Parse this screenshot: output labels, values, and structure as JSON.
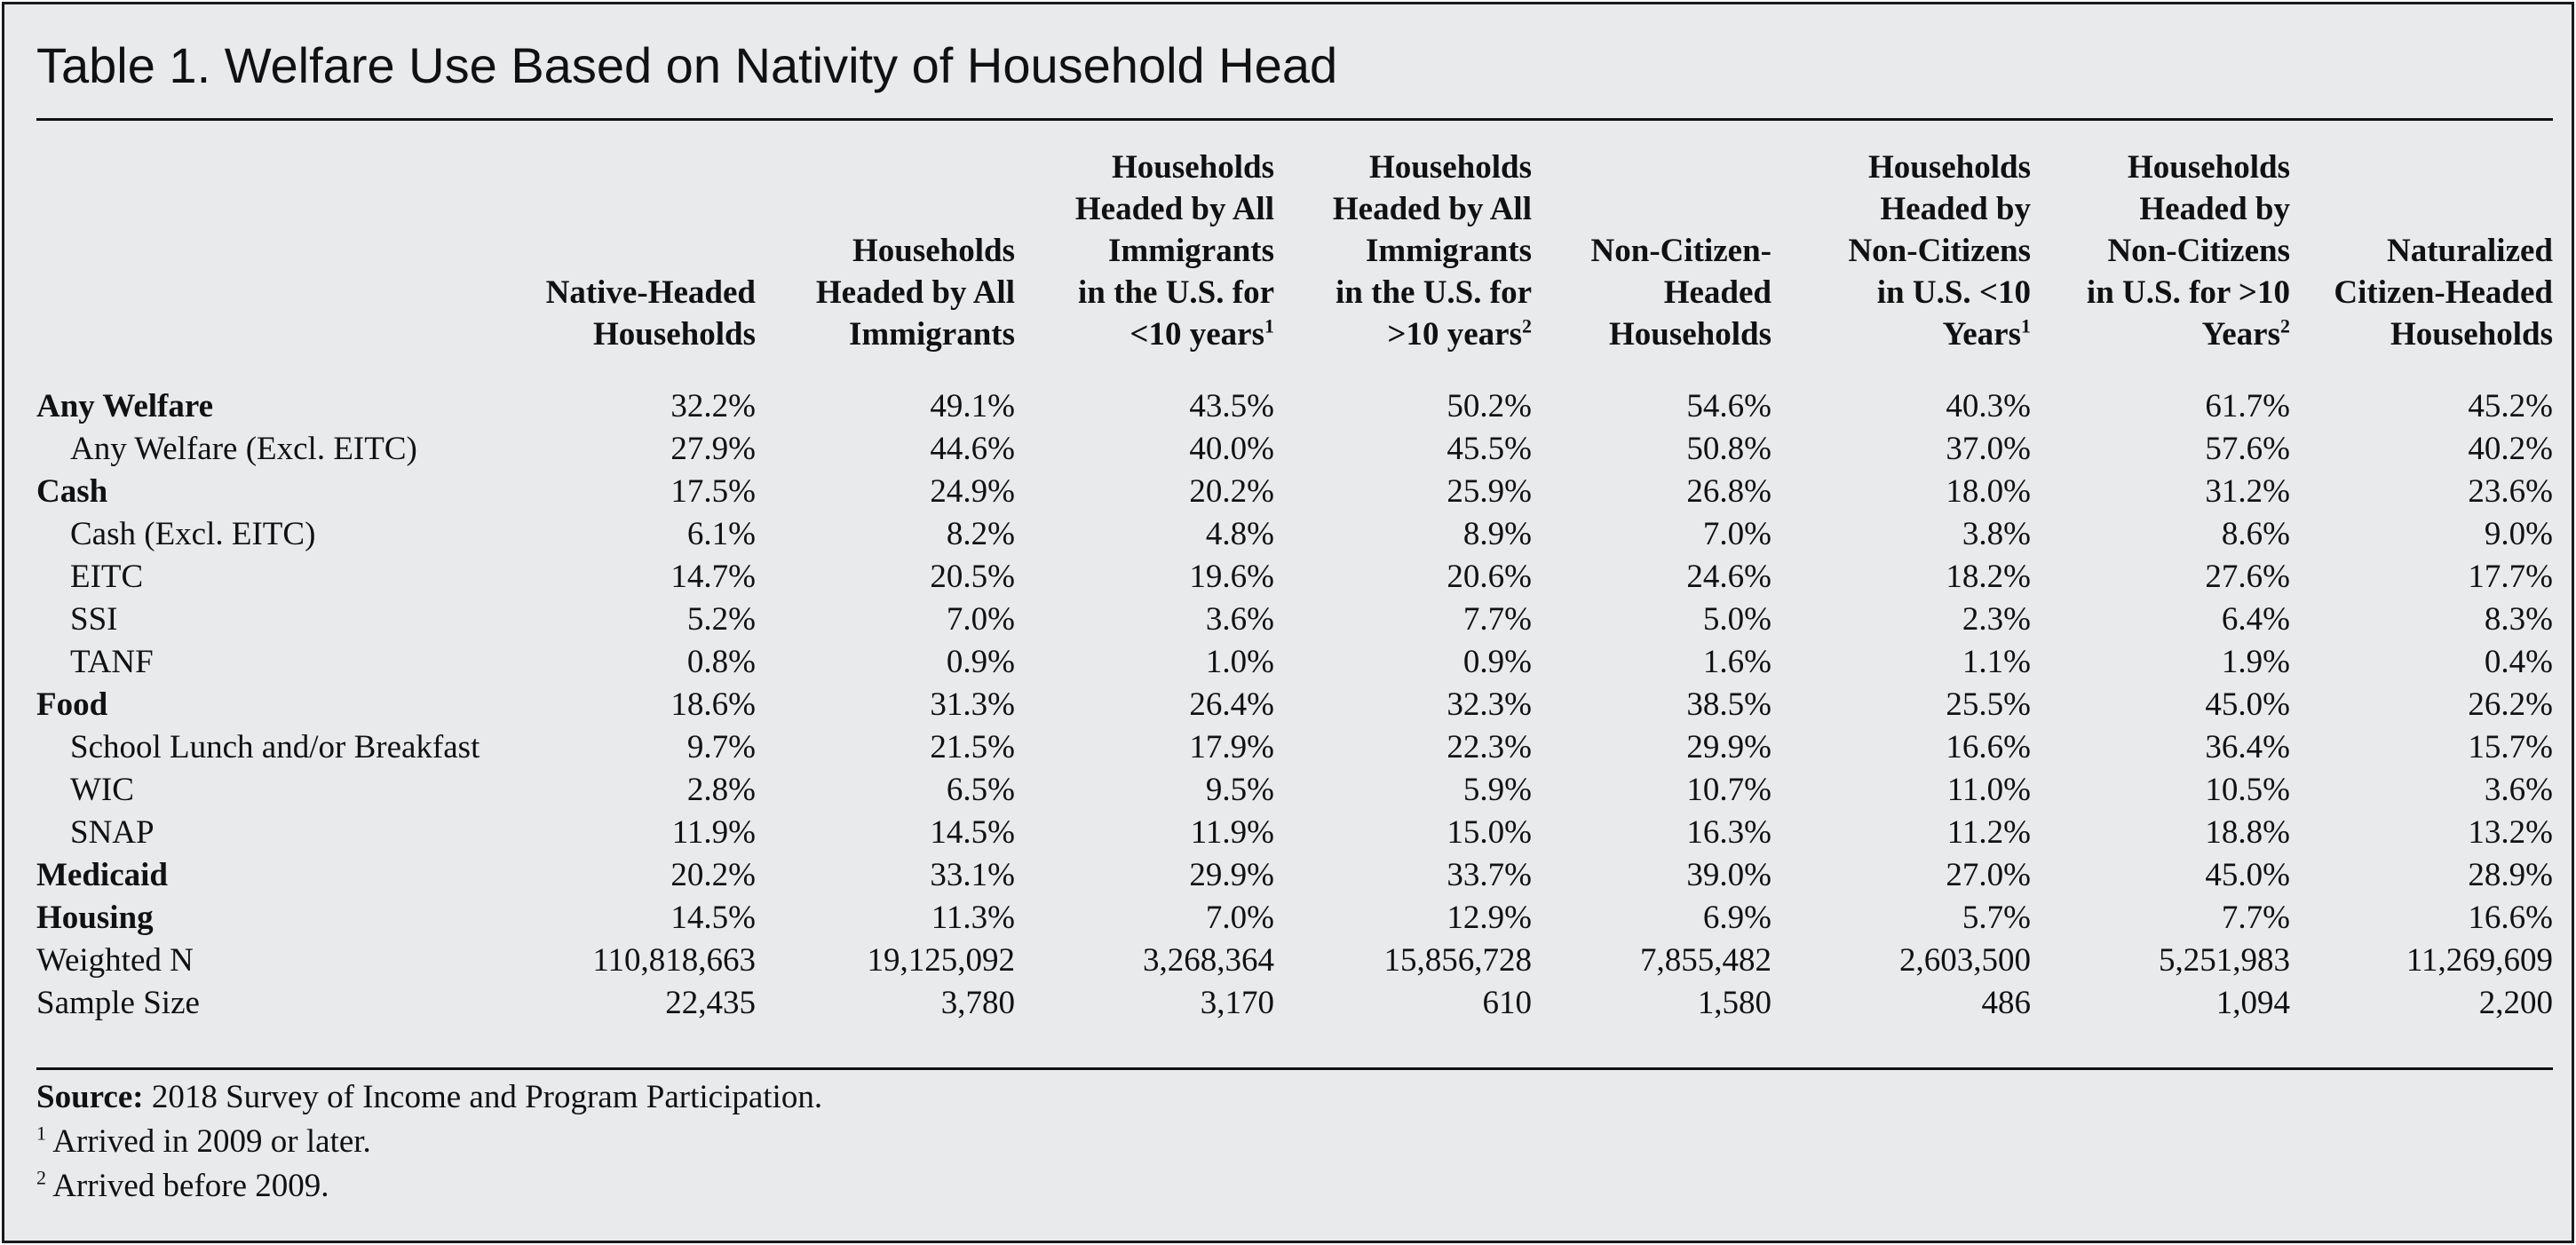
{
  "title": "Table 1. Welfare Use Based on Nativity of Household Head",
  "columns": [
    {
      "line": "Native-Headed\nHouseholds",
      "sup": ""
    },
    {
      "line": "Households\nHeaded by All\nImmigrants",
      "sup": ""
    },
    {
      "line": "Households\nHeaded by All\nImmigrants\nin the U.S. for\n<10 years",
      "sup": "1"
    },
    {
      "line": "Households\nHeaded by All\nImmigrants\nin the U.S. for\n>10 years",
      "sup": "2"
    },
    {
      "line": "Non-Citizen-\nHeaded\nHouseholds",
      "sup": ""
    },
    {
      "line": "Households\nHeaded by\nNon-Citizens\nin U.S. <10\nYears",
      "sup": "1"
    },
    {
      "line": "Households\nHeaded by\nNon-Citizens\nin U.S. for >10\nYears",
      "sup": "2"
    },
    {
      "line": "Naturalized\nCitizen-Headed\nHouseholds",
      "sup": ""
    }
  ],
  "rows": [
    {
      "label": "Any Welfare",
      "level": 1,
      "values": [
        "32.2%",
        "49.1%",
        "43.5%",
        "50.2%",
        "54.6%",
        "40.3%",
        "61.7%",
        "45.2%"
      ]
    },
    {
      "label": "Any Welfare (Excl.  EITC)",
      "level": 2,
      "values": [
        "27.9%",
        "44.6%",
        "40.0%",
        "45.5%",
        "50.8%",
        "37.0%",
        "57.6%",
        "40.2%"
      ]
    },
    {
      "label": "Cash",
      "level": 1,
      "values": [
        "17.5%",
        "24.9%",
        "20.2%",
        "25.9%",
        "26.8%",
        "18.0%",
        "31.2%",
        "23.6%"
      ]
    },
    {
      "label": "Cash (Excl. EITC)",
      "level": 2,
      "values": [
        "6.1%",
        "8.2%",
        "4.8%",
        "8.9%",
        "7.0%",
        "3.8%",
        "8.6%",
        "9.0%"
      ]
    },
    {
      "label": "EITC",
      "level": 2,
      "values": [
        "14.7%",
        "20.5%",
        "19.6%",
        "20.6%",
        "24.6%",
        "18.2%",
        "27.6%",
        "17.7%"
      ]
    },
    {
      "label": "SSI",
      "level": 2,
      "values": [
        "5.2%",
        "7.0%",
        "3.6%",
        "7.7%",
        "5.0%",
        "2.3%",
        "6.4%",
        "8.3%"
      ]
    },
    {
      "label": "TANF",
      "level": 2,
      "values": [
        "0.8%",
        "0.9%",
        "1.0%",
        "0.9%",
        "1.6%",
        "1.1%",
        "1.9%",
        "0.4%"
      ]
    },
    {
      "label": "Food",
      "level": 1,
      "values": [
        "18.6%",
        "31.3%",
        "26.4%",
        "32.3%",
        "38.5%",
        "25.5%",
        "45.0%",
        "26.2%"
      ]
    },
    {
      "label": "School Lunch and/or Breakfast",
      "level": 2,
      "values": [
        "9.7%",
        "21.5%",
        "17.9%",
        "22.3%",
        "29.9%",
        "16.6%",
        "36.4%",
        "15.7%"
      ]
    },
    {
      "label": "WIC",
      "level": 2,
      "values": [
        "2.8%",
        "6.5%",
        "9.5%",
        "5.9%",
        "10.7%",
        "11.0%",
        "10.5%",
        "3.6%"
      ]
    },
    {
      "label": "SNAP",
      "level": 2,
      "values": [
        "11.9%",
        "14.5%",
        "11.9%",
        "15.0%",
        "16.3%",
        "11.2%",
        "18.8%",
        "13.2%"
      ]
    },
    {
      "label": "Medicaid",
      "level": 1,
      "values": [
        "20.2%",
        "33.1%",
        "29.9%",
        "33.7%",
        "39.0%",
        "27.0%",
        "45.0%",
        "28.9%"
      ]
    },
    {
      "label": "Housing",
      "level": 1,
      "values": [
        "14.5%",
        "11.3%",
        "7.0%",
        "12.9%",
        "6.9%",
        "5.7%",
        "7.7%",
        "16.6%"
      ]
    },
    {
      "label": "Weighted N",
      "level": 0,
      "values": [
        "110,818,663",
        "19,125,092",
        "3,268,364",
        "15,856,728",
        "7,855,482",
        "2,603,500",
        "5,251,983",
        "11,269,609"
      ]
    },
    {
      "label": "Sample Size",
      "level": 0,
      "values": [
        "22,435",
        "3,780",
        "3,170",
        "610",
        "1,580",
        "486",
        "1,094",
        "2,200"
      ]
    }
  ],
  "notes": {
    "source_label": "Source:",
    "source_text": " 2018 Survey of Income and Program Participation.",
    "footnote1_mark": "1",
    "footnote1_text": " Arrived in 2009 or later.",
    "footnote2_mark": "2",
    "footnote2_text": " Arrived before 2009."
  }
}
